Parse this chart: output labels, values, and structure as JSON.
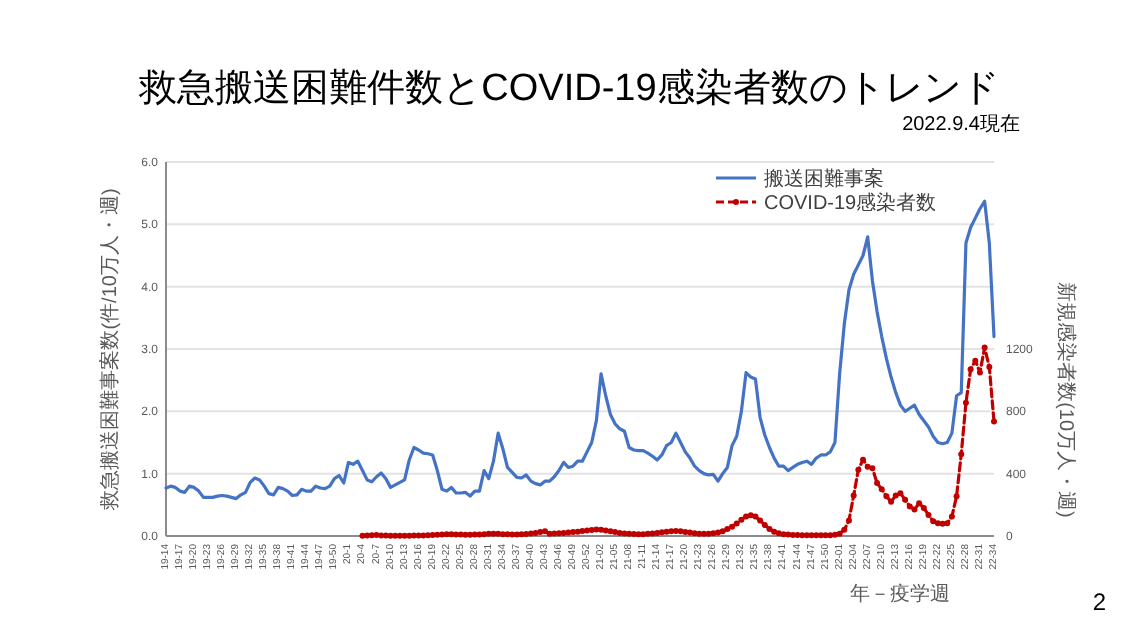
{
  "chart_data": {
    "type": "line",
    "title": "救急搬送困難件数とCOVID-19感染者数のトレンド",
    "subtitle": "2022.9.4現在",
    "xlabel": "年－疫学週",
    "ylabel": "救急搬送困難事案数(件/10万人・週)",
    "y2label": "新規感染者数(10万人・週)",
    "annotations": [
      "2"
    ],
    "categories": [
      "19-14",
      null,
      null,
      "19-17",
      null,
      null,
      "19-20",
      null,
      null,
      "19-23",
      null,
      null,
      "19-26",
      null,
      null,
      "19-29",
      null,
      null,
      "19-32",
      null,
      null,
      "19-35",
      null,
      null,
      "19-38",
      null,
      null,
      "19-41",
      null,
      null,
      "19-44",
      null,
      null,
      "19-47",
      null,
      null,
      "19-50",
      null,
      null,
      "20-1",
      null,
      null,
      "20-4",
      null,
      null,
      "20-7",
      null,
      null,
      "20-10",
      null,
      null,
      "20-13",
      null,
      null,
      "20-16",
      null,
      null,
      "20-19",
      null,
      null,
      "20-22",
      null,
      null,
      "20-25",
      null,
      null,
      "20-28",
      null,
      null,
      "20-31",
      null,
      null,
      "20-34",
      null,
      null,
      "20-37",
      null,
      null,
      "20-40",
      null,
      null,
      "20-43",
      null,
      null,
      "20-46",
      null,
      null,
      "20-49",
      null,
      null,
      "20-52",
      null,
      null,
      "21-02",
      null,
      null,
      "21-05",
      null,
      null,
      "21-08",
      null,
      null,
      "21-11",
      null,
      null,
      "21-14",
      null,
      null,
      "21-17",
      null,
      null,
      "21-20",
      null,
      null,
      "21-23",
      null,
      null,
      "21-26",
      null,
      null,
      "21-29",
      null,
      null,
      "21-32",
      null,
      null,
      "21-35",
      null,
      null,
      "21-38",
      null,
      null,
      "21-41",
      null,
      null,
      "21-44",
      null,
      null,
      "21-47",
      null,
      null,
      "21-50",
      null,
      null,
      "22-01",
      null,
      null,
      "22-04",
      null,
      null,
      "22-07",
      null,
      null,
      "22-10",
      null,
      null,
      "22-13",
      null,
      null,
      "22-16",
      null,
      null,
      "22-19",
      null,
      null,
      "22-22",
      null,
      null,
      "22-25",
      null,
      null,
      "22-28",
      null,
      null,
      "22-31",
      null,
      null,
      "22-34"
    ],
    "series": [
      {
        "name": "搬送困難事案",
        "color": "#4472c4",
        "line_style": "solid",
        "marker": "none",
        "values": [
          0.77,
          0.8,
          0.78,
          0.72,
          0.7,
          0.8,
          0.78,
          0.72,
          0.62,
          0.62,
          0.62,
          0.64,
          0.65,
          0.64,
          0.62,
          0.6,
          0.66,
          0.7,
          0.86,
          0.93,
          0.9,
          0.8,
          0.68,
          0.66,
          0.78,
          0.76,
          0.72,
          0.65,
          0.66,
          0.75,
          0.72,
          0.72,
          0.8,
          0.77,
          0.76,
          0.8,
          0.92,
          0.97,
          0.85,
          1.18,
          1.15,
          1.2,
          1.05,
          0.9,
          0.87,
          0.95,
          1.01,
          0.92,
          0.78,
          0.82,
          0.86,
          0.9,
          1.22,
          1.42,
          1.38,
          1.33,
          1.32,
          1.3,
          1.05,
          0.75,
          0.72,
          0.78,
          0.69,
          0.69,
          0.7,
          0.64,
          0.72,
          0.72,
          1.05,
          0.92,
          1.2,
          1.65,
          1.4,
          1.1,
          1.02,
          0.94,
          0.93,
          0.98,
          0.88,
          0.84,
          0.82,
          0.88,
          0.88,
          0.95,
          1.05,
          1.18,
          1.1,
          1.12,
          1.2,
          1.2,
          1.35,
          1.5,
          1.85,
          2.6,
          2.25,
          1.95,
          1.8,
          1.72,
          1.68,
          1.42,
          1.38,
          1.37,
          1.37,
          1.33,
          1.28,
          1.22,
          1.3,
          1.45,
          1.5,
          1.65,
          1.5,
          1.35,
          1.25,
          1.12,
          1.05,
          1.0,
          0.98,
          0.99,
          0.88,
          1.0,
          1.1,
          1.45,
          1.6,
          2.0,
          2.62,
          2.55,
          2.52,
          1.9,
          1.62,
          1.42,
          1.25,
          1.12,
          1.12,
          1.05,
          1.1,
          1.15,
          1.18,
          1.2,
          1.15,
          1.25,
          1.3,
          1.3,
          1.35,
          1.5,
          2.6,
          3.4,
          3.95,
          4.2,
          4.35,
          4.5,
          4.8,
          4.1,
          3.6,
          3.2,
          2.85,
          2.55,
          2.3,
          2.1,
          2.0,
          2.05,
          2.1,
          1.95,
          1.85,
          1.75,
          1.6,
          1.5,
          1.48,
          1.5,
          1.65,
          2.25,
          2.3,
          4.7,
          4.95,
          5.1,
          5.25,
          5.37,
          4.7,
          3.2
        ]
      },
      {
        "name": "COVID-19感染者数",
        "color": "#c00000",
        "axis": "y2",
        "line_style": "dashed",
        "marker": "circle",
        "values": [
          null,
          null,
          null,
          null,
          null,
          null,
          null,
          null,
          null,
          null,
          null,
          null,
          null,
          null,
          null,
          null,
          null,
          null,
          null,
          null,
          null,
          null,
          null,
          null,
          null,
          null,
          null,
          null,
          null,
          null,
          null,
          null,
          null,
          null,
          null,
          null,
          null,
          null,
          null,
          null,
          null,
          null,
          2,
          3,
          5,
          6,
          4,
          3,
          2,
          2,
          2,
          2,
          2,
          3,
          3,
          4,
          5,
          6,
          8,
          10,
          12,
          12,
          10,
          9,
          8,
          8,
          9,
          10,
          12,
          14,
          15,
          14,
          12,
          11,
          10,
          10,
          11,
          13,
          16,
          20,
          25,
          30,
          14,
          16,
          18,
          20,
          22,
          25,
          28,
          32,
          36,
          38,
          42,
          40,
          36,
          30,
          25,
          20,
          16,
          14,
          13,
          12,
          12,
          14,
          16,
          20,
          24,
          28,
          30,
          32,
          30,
          26,
          22,
          18,
          15,
          14,
          15,
          18,
          22,
          30,
          45,
          60,
          80,
          105,
          125,
          133,
          125,
          100,
          70,
          45,
          28,
          18,
          12,
          9,
          7,
          6,
          5,
          5,
          5,
          5,
          5,
          5,
          5,
          8,
          15,
          40,
          100,
          260,
          425,
          490,
          445,
          435,
          340,
          300,
          255,
          220,
          260,
          275,
          232,
          190,
          170,
          210,
          180,
          135,
          95,
          82,
          78,
          82,
          125,
          255,
          525,
          855,
          1070,
          1125,
          1050,
          1210,
          1085,
          735
        ]
      }
    ],
    "ylim": [
      0,
      6
    ],
    "yticks": [
      {
        "value": 0,
        "label": "0.0"
      },
      {
        "value": 1,
        "label": "1.0"
      },
      {
        "value": 2,
        "label": "2.0"
      },
      {
        "value": 3,
        "label": "3.0"
      },
      {
        "value": 4,
        "label": "4.0"
      },
      {
        "value": 5,
        "label": "5.0"
      },
      {
        "value": 6,
        "label": "6.0"
      }
    ],
    "y2lim": [
      0,
      2400
    ],
    "y2ticks": [
      0,
      400,
      800,
      1200
    ],
    "grid": "y",
    "legend": "top right"
  }
}
